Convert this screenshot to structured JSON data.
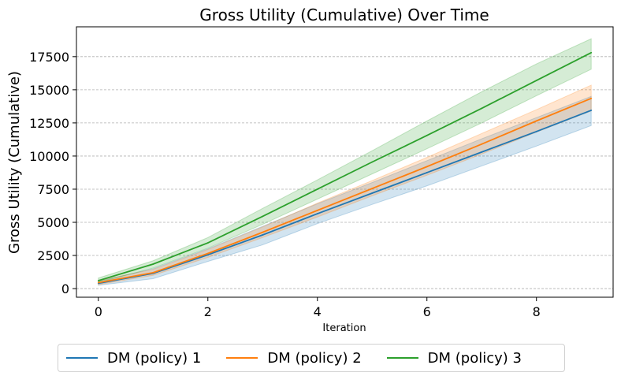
{
  "chart_data": {
    "type": "line",
    "title": "Gross Utility (Cumulative) Over Time",
    "xlabel": "Iteration",
    "ylabel": "Gross Utility (Cumulative)",
    "xlim": [
      -0.4,
      9.4
    ],
    "ylim": [
      -650,
      19750
    ],
    "xticks": [
      0,
      2,
      4,
      6,
      8
    ],
    "yticks": [
      0,
      2500,
      5000,
      7500,
      10000,
      12500,
      15000,
      17500
    ],
    "grid": "horizontal dashed",
    "legend_position": "bottom-center",
    "x": [
      0,
      1,
      2,
      3,
      4,
      5,
      6,
      7,
      8,
      9
    ],
    "series": [
      {
        "name": "DM (policy) 1",
        "color": "#1f77b4",
        "values": [
          400,
          1150,
          2550,
          4050,
          5650,
          7200,
          8750,
          10300,
          11850,
          13450
        ],
        "lower": [
          250,
          750,
          2050,
          3300,
          4900,
          6350,
          7750,
          9250,
          10750,
          12300
        ],
        "upper": [
          550,
          1500,
          3000,
          4700,
          6400,
          8000,
          9650,
          11300,
          12900,
          14500
        ]
      },
      {
        "name": "DM (policy) 2",
        "color": "#ff7f0e",
        "values": [
          450,
          1200,
          2650,
          4250,
          5900,
          7550,
          9200,
          10900,
          12650,
          14350
        ],
        "lower": [
          300,
          1000,
          2350,
          3850,
          5400,
          7000,
          8550,
          10150,
          11800,
          13400
        ],
        "upper": [
          600,
          1450,
          2950,
          4650,
          6450,
          8150,
          9900,
          11700,
          13500,
          15350
        ]
      },
      {
        "name": "DM (policy) 3",
        "color": "#2ca02c",
        "values": [
          600,
          1850,
          3450,
          5450,
          7500,
          9550,
          11550,
          13600,
          15700,
          17800
        ],
        "lower": [
          450,
          1550,
          3050,
          4850,
          6750,
          8650,
          10550,
          12500,
          14550,
          16550
        ],
        "upper": [
          800,
          2100,
          3850,
          6050,
          8200,
          10400,
          12650,
          14850,
          16950,
          18850
        ]
      }
    ]
  }
}
